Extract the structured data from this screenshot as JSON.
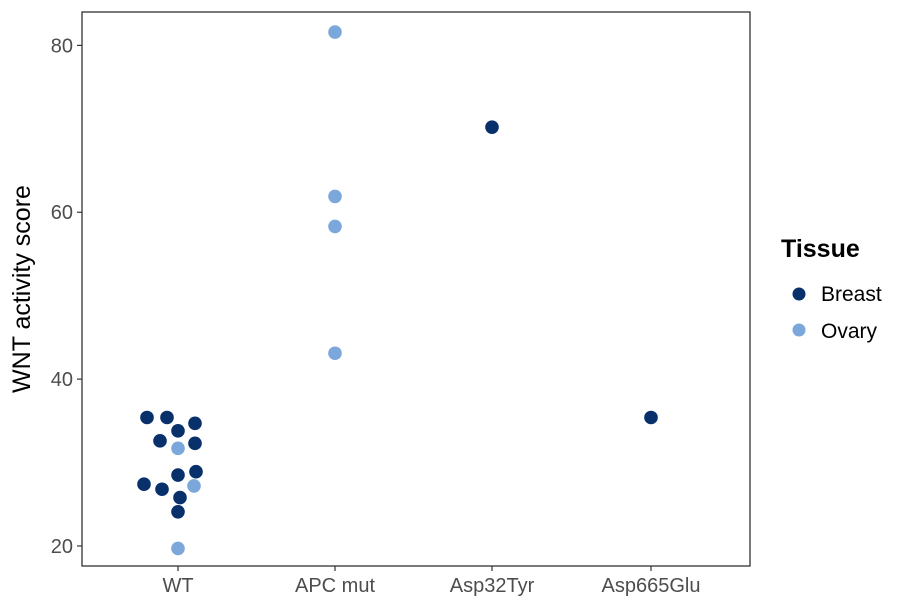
{
  "chart_data": {
    "type": "scatter",
    "title": "",
    "xlabel": "",
    "ylabel": "WNT activity score",
    "categories": [
      "WT",
      "APC mut",
      "Asp32Tyr",
      "Asp665Glu"
    ],
    "yticks": [
      20,
      40,
      60,
      80
    ],
    "ylim": [
      17.6,
      84
    ],
    "grid": false,
    "legend": {
      "title": "Tissue",
      "placement": "right",
      "items": [
        {
          "label": "Breast",
          "color": "#08306b"
        },
        {
          "label": "Ovary",
          "color": "#7ba7db"
        }
      ]
    },
    "series": [
      {
        "name": "Breast",
        "color": "#08306b",
        "points": [
          {
            "x": "WT",
            "y": 35.4
          },
          {
            "x": "WT",
            "y": 35.4
          },
          {
            "x": "WT",
            "y": 34.7
          },
          {
            "x": "WT",
            "y": 33.8
          },
          {
            "x": "WT",
            "y": 32.6
          },
          {
            "x": "WT",
            "y": 32.3
          },
          {
            "x": "WT",
            "y": 28.9
          },
          {
            "x": "WT",
            "y": 28.5
          },
          {
            "x": "WT",
            "y": 27.4
          },
          {
            "x": "WT",
            "y": 26.8
          },
          {
            "x": "WT",
            "y": 25.8
          },
          {
            "x": "WT",
            "y": 24.1
          },
          {
            "x": "Asp32Tyr",
            "y": 70.2
          },
          {
            "x": "Asp665Glu",
            "y": 35.4
          }
        ]
      },
      {
        "name": "Ovary",
        "color": "#7ba7db",
        "points": [
          {
            "x": "WT",
            "y": 31.7
          },
          {
            "x": "WT",
            "y": 27.2
          },
          {
            "x": "WT",
            "y": 19.7
          },
          {
            "x": "APC mut",
            "y": 81.6
          },
          {
            "x": "APC mut",
            "y": 61.9
          },
          {
            "x": "APC mut",
            "y": 58.3
          },
          {
            "x": "APC mut",
            "y": 43.1
          }
        ]
      }
    ]
  }
}
